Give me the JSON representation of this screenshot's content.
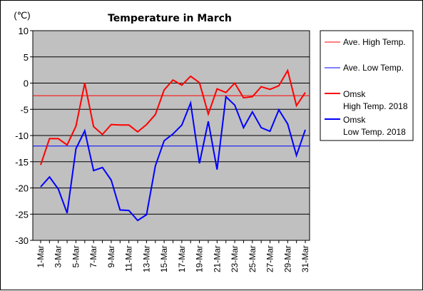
{
  "chart_data": {
    "type": "line",
    "title": "Temperature in March",
    "ylabel": "(℃)",
    "ylim": [
      -30,
      10
    ],
    "ytick_step": 5,
    "grid": "horizontal",
    "background": "#c0c0c0",
    "legend_position": "right",
    "categories": [
      "1-Mar",
      "2-Mar",
      "3-Mar",
      "4-Mar",
      "5-Mar",
      "6-Mar",
      "7-Mar",
      "8-Mar",
      "9-Mar",
      "10-Mar",
      "11-Mar",
      "12-Mar",
      "13-Mar",
      "14-Mar",
      "15-Mar",
      "16-Mar",
      "17-Mar",
      "18-Mar",
      "19-Mar",
      "20-Mar",
      "21-Mar",
      "22-Mar",
      "23-Mar",
      "24-Mar",
      "25-Mar",
      "26-Mar",
      "27-Mar",
      "28-Mar",
      "29-Mar",
      "30-Mar",
      "31-Mar"
    ],
    "xtick_labels": [
      "1-Mar",
      "3-Mar",
      "5-Mar",
      "7-Mar",
      "9-Mar",
      "11-Mar",
      "13-Mar",
      "15-Mar",
      "17-Mar",
      "19-Mar",
      "21-Mar",
      "23-Mar",
      "25-Mar",
      "27-Mar",
      "29-Mar",
      "31-Mar"
    ],
    "series": [
      {
        "name": "Ave. High Temp.",
        "color": "#ff0000",
        "width": 1,
        "constant": -2.4
      },
      {
        "name": "Ave. Low Temp.",
        "color": "#0000ff",
        "width": 1,
        "constant": -12.0
      },
      {
        "name": "Omsk\nHigh Temp. 2018",
        "color": "#ff0000",
        "width": 2,
        "values": [
          -15.6,
          -10.6,
          -10.6,
          -11.8,
          -8.2,
          0.0,
          -8.3,
          -9.8,
          -7.9,
          -8.0,
          -8.0,
          -9.3,
          -7.9,
          -6.0,
          -1.3,
          0.6,
          -0.4,
          1.3,
          0.1,
          -5.9,
          -1.1,
          -1.8,
          0.0,
          -2.8,
          -2.6,
          -0.7,
          -1.2,
          -0.5,
          2.4,
          -4.3,
          -1.8
        ]
      },
      {
        "name": "Omsk\nLow Temp. 2018",
        "color": "#0000ff",
        "width": 2,
        "values": [
          -19.8,
          -17.9,
          -20.2,
          -24.8,
          -12.5,
          -9.1,
          -16.7,
          -16.1,
          -18.5,
          -24.2,
          -24.3,
          -26.2,
          -25.1,
          -15.8,
          -11.0,
          -9.7,
          -8.0,
          -3.8,
          -15.3,
          -7.3,
          -16.5,
          -2.6,
          -4.2,
          -8.5,
          -5.5,
          -8.5,
          -9.2,
          -5.1,
          -7.8,
          -13.8,
          -8.9
        ]
      }
    ]
  }
}
